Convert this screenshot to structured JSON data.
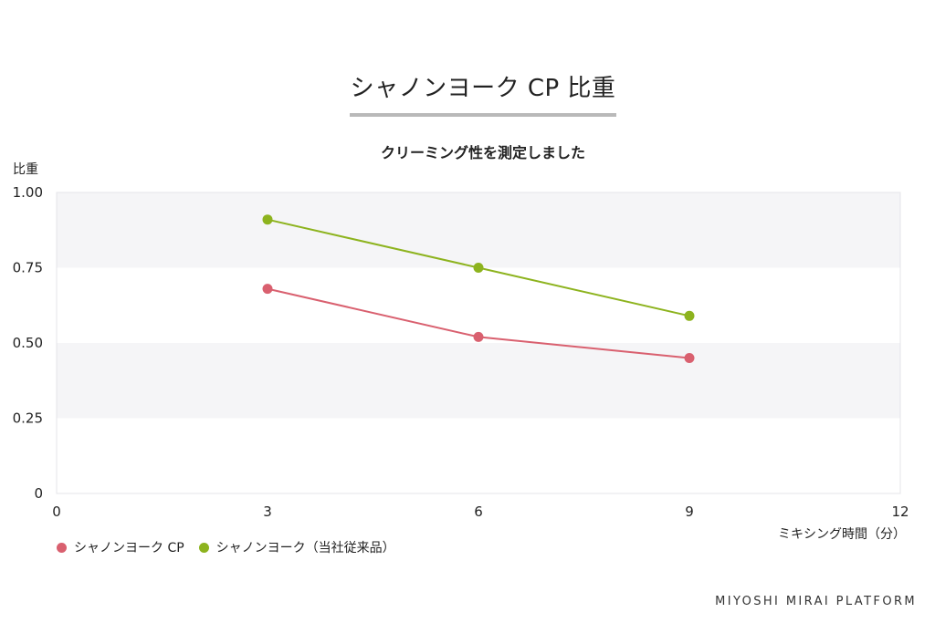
{
  "page": {
    "title": "シャノンヨーク CP 比重",
    "brand": "MIYOSHI MIRAI PLATFORM"
  },
  "chart_data": {
    "type": "line",
    "title": "クリーミング性を測定しました",
    "xlabel": "ミキシング時間（分）",
    "ylabel": "比重",
    "xlim": [
      0,
      12
    ],
    "ylim": [
      0,
      1.0
    ],
    "x_ticks": [
      "0",
      "3",
      "6",
      "9",
      "12"
    ],
    "y_ticks": [
      "0",
      "0.25",
      "0.50",
      "0.75",
      "1.00"
    ],
    "x_tick_values": [
      0,
      3,
      6,
      9,
      12
    ],
    "y_tick_values": [
      0,
      0.25,
      0.5,
      0.75,
      1.0
    ],
    "grid": "alternating horizontal bands",
    "legend_position": "bottom-left",
    "series": [
      {
        "name": "シャノンヨーク CP",
        "color": "#d9606f",
        "x": [
          3,
          6,
          9
        ],
        "values": [
          0.68,
          0.52,
          0.45
        ]
      },
      {
        "name": "シャノンヨーク（当社従来品）",
        "color": "#8db31e",
        "x": [
          3,
          6,
          9
        ],
        "values": [
          0.91,
          0.75,
          0.59
        ]
      }
    ]
  }
}
